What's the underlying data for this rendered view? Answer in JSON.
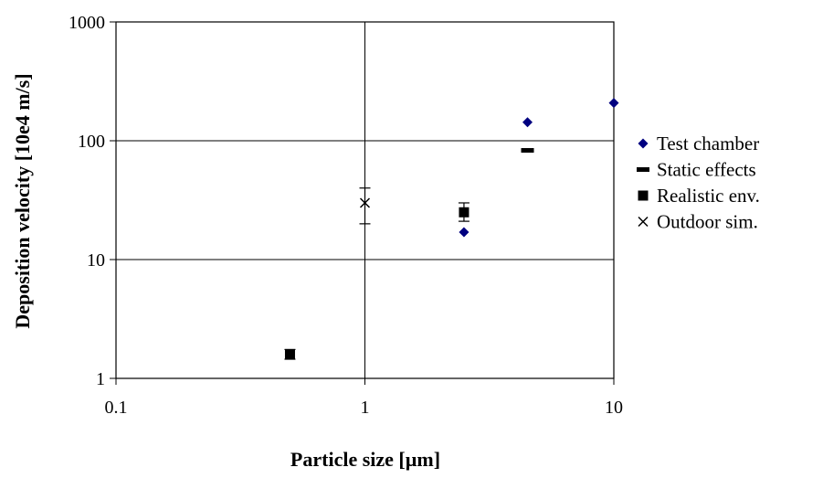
{
  "chart_data": {
    "type": "scatter",
    "xlabel": "Particle size [µm]",
    "ylabel": "Deposition velocity [10e4 m/s]",
    "xscale": "log",
    "yscale": "log",
    "xlim": [
      0.1,
      10
    ],
    "ylim": [
      1,
      1000
    ],
    "grid": true,
    "legend_position": "right",
    "x_ticks": [
      {
        "value": 0.1,
        "label": "0.1"
      },
      {
        "value": 1,
        "label": "1"
      },
      {
        "value": 10,
        "label": "10"
      }
    ],
    "y_ticks": [
      {
        "value": 1,
        "label": "1"
      },
      {
        "value": 10,
        "label": "10"
      },
      {
        "value": 100,
        "label": "100"
      },
      {
        "value": 1000,
        "label": "1000"
      }
    ],
    "series": [
      {
        "name": "Test chamber",
        "marker": "diamond",
        "color": "#000080",
        "points": [
          {
            "x": 2.5,
            "y": 17
          },
          {
            "x": 4.5,
            "y": 143
          },
          {
            "x": 10,
            "y": 208
          }
        ]
      },
      {
        "name": "Static effects",
        "marker": "dash",
        "color": "#000000",
        "points": [
          {
            "x": 4.5,
            "y": 83
          }
        ]
      },
      {
        "name": "Realistic env.",
        "marker": "square",
        "color": "#000000",
        "points": [
          {
            "x": 0.5,
            "y": 1.6,
            "y_err_low": 1.45,
            "y_err_high": 1.75
          },
          {
            "x": 2.5,
            "y": 25,
            "y_err_low": 21,
            "y_err_high": 30
          }
        ]
      },
      {
        "name": "Outdoor sim.",
        "marker": "x",
        "color": "#000000",
        "points": [
          {
            "x": 1,
            "y": 30,
            "y_err_low": 20,
            "y_err_high": 40
          }
        ]
      }
    ]
  }
}
